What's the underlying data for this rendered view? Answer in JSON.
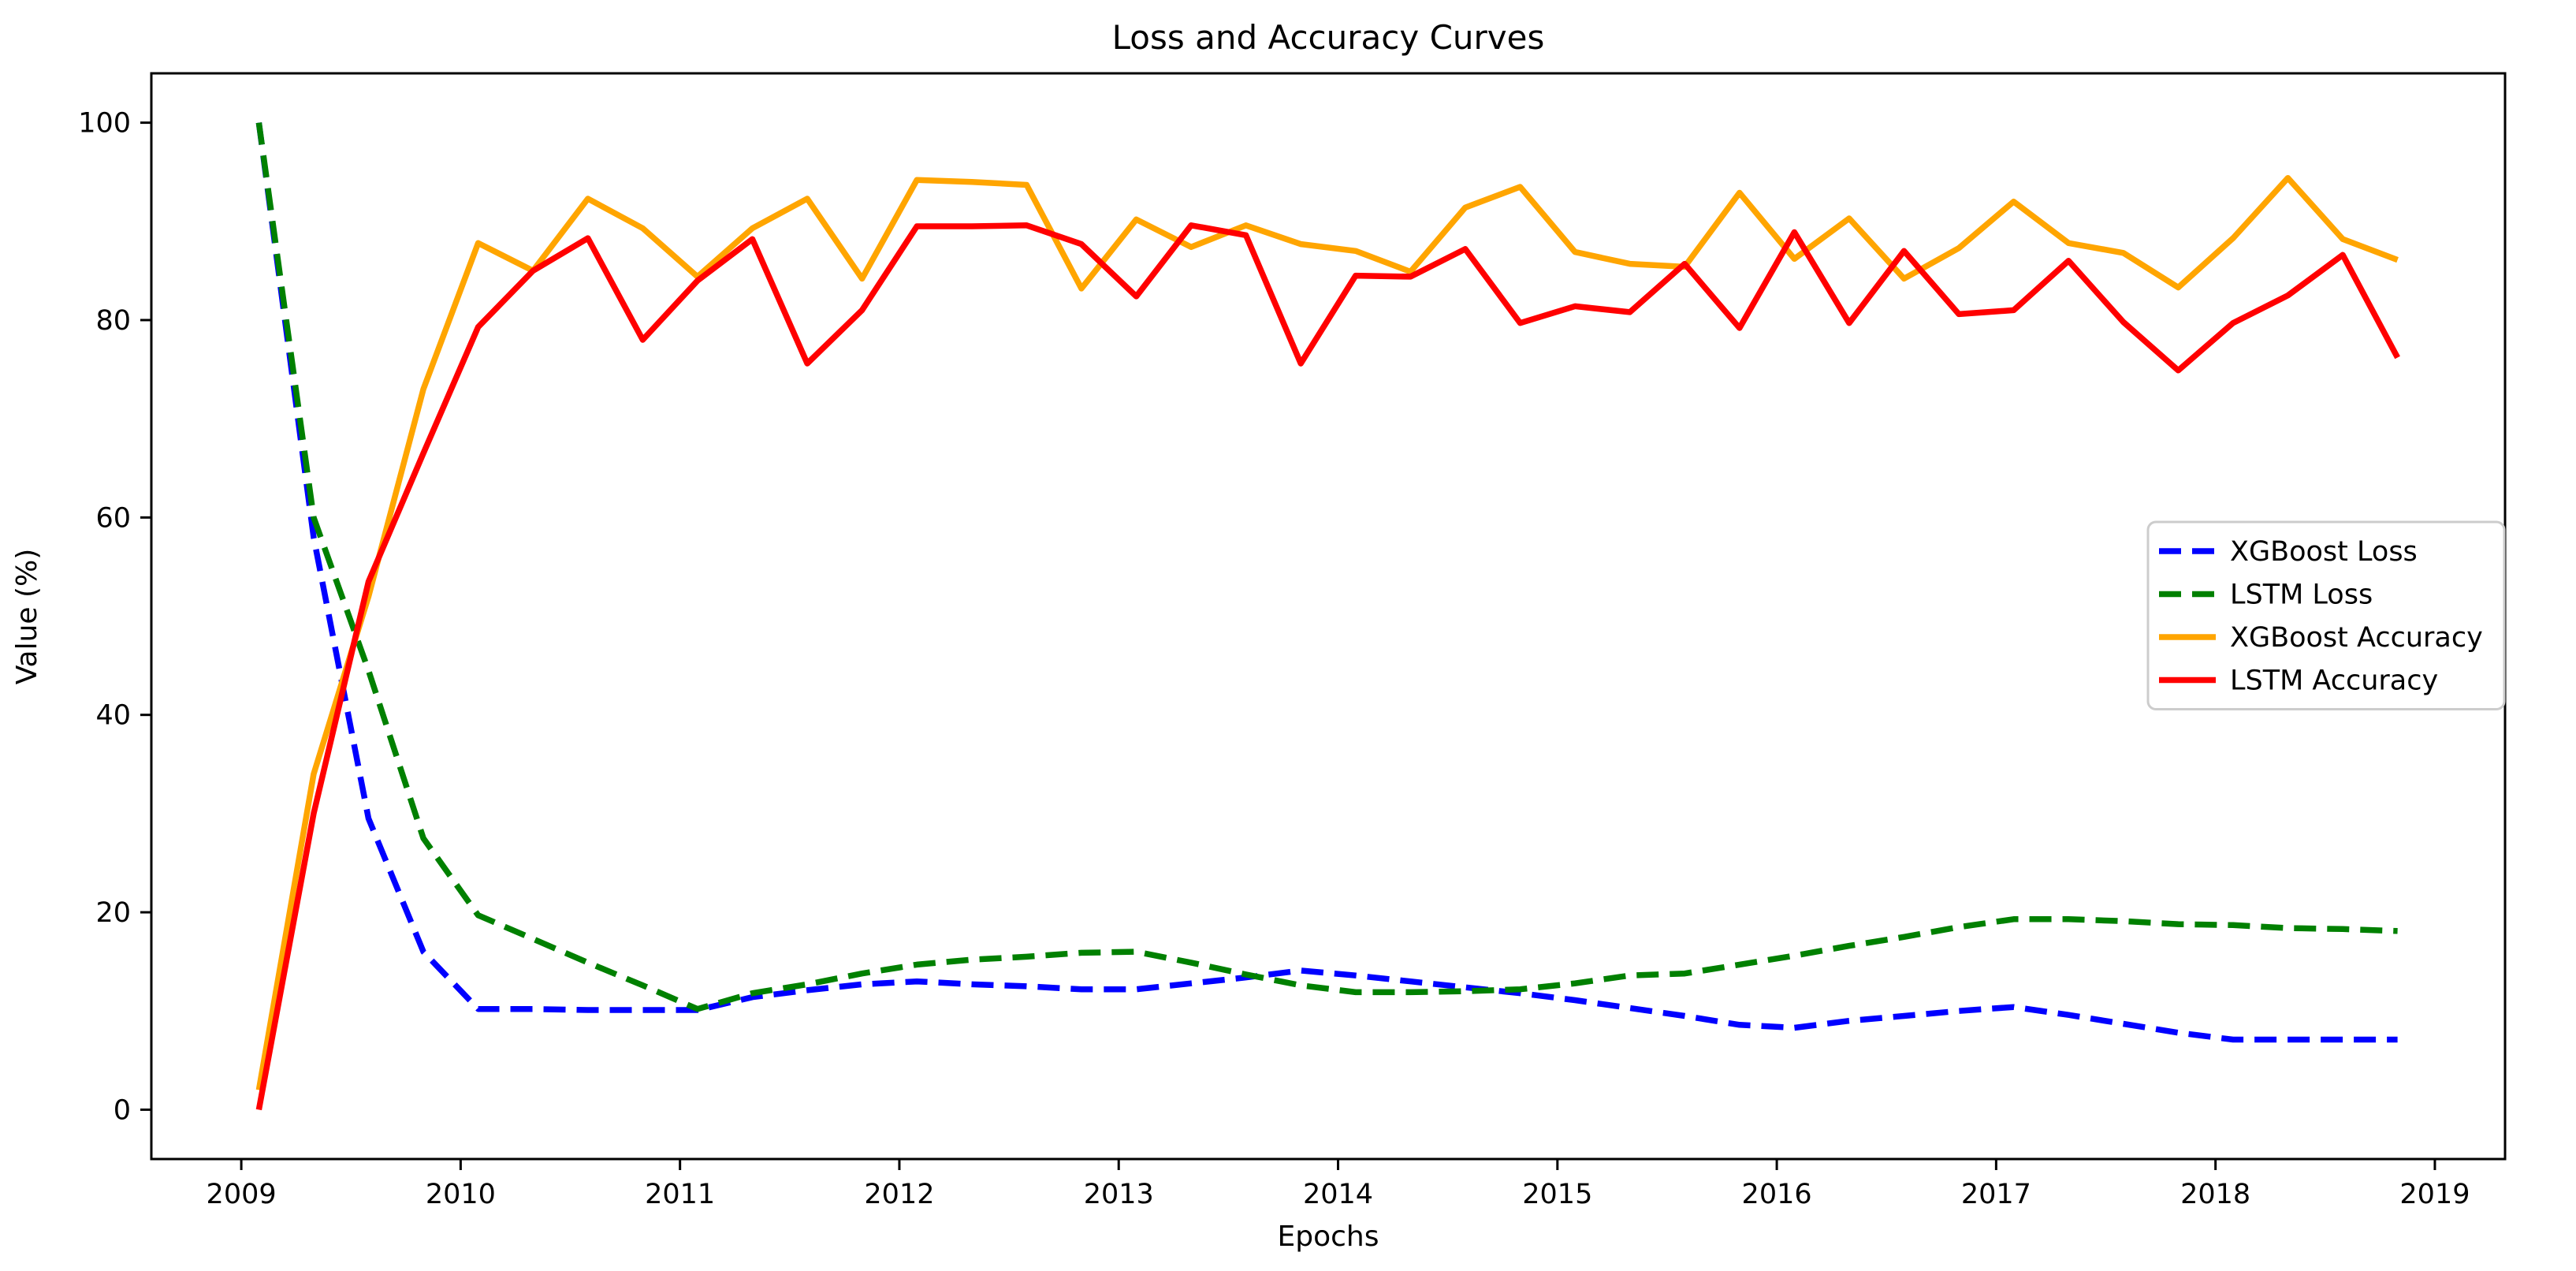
{
  "figure": {
    "title": "Loss and Accuracy Curves",
    "xlabel": "Epochs",
    "ylabel": "Value (%)",
    "background_color": "#ffffff",
    "axis_color": "#000000",
    "legend_border_color": "#cccccc"
  },
  "chart_data": {
    "type": "line",
    "title": "Loss and Accuracy Curves",
    "xlabel": "Epochs",
    "ylabel": "Value (%)",
    "grid": false,
    "legend_position": "center right",
    "xlim": [
      2008.59,
      2019.32
    ],
    "ylim": [
      -5,
      105
    ],
    "x_ticks": [
      2009,
      2010,
      2011,
      2012,
      2013,
      2014,
      2015,
      2016,
      2017,
      2018,
      2019
    ],
    "y_ticks": [
      0,
      20,
      40,
      60,
      80,
      100
    ],
    "x": [
      2009.08,
      2009.33,
      2009.58,
      2009.83,
      2010.08,
      2010.33,
      2010.58,
      2010.83,
      2011.08,
      2011.33,
      2011.58,
      2011.83,
      2012.08,
      2012.33,
      2012.58,
      2012.83,
      2013.08,
      2013.33,
      2013.58,
      2013.83,
      2014.08,
      2014.33,
      2014.58,
      2014.83,
      2015.08,
      2015.33,
      2015.58,
      2015.83,
      2016.08,
      2016.33,
      2016.58,
      2016.83,
      2017.08,
      2017.33,
      2017.58,
      2017.83,
      2018.08,
      2018.33,
      2018.58,
      2018.83
    ],
    "series": [
      {
        "name": "XGBoost Loss",
        "color": "#0000ff",
        "style": "dashed",
        "values": [
          100,
          58,
          29.5,
          16,
          10.2,
          10.2,
          10.1,
          10.1,
          10.1,
          11.4,
          12.1,
          12.7,
          13,
          12.7,
          12.5,
          12.2,
          12.2,
          12.8,
          13.4,
          14.1,
          13.6,
          13,
          12.4,
          11.8,
          11.1,
          10.3,
          9.5,
          8.6,
          8.3,
          9,
          9.5,
          10,
          10.4,
          9.6,
          8.7,
          7.8,
          7.1,
          7.1,
          7.1,
          7.1
        ]
      },
      {
        "name": "LSTM Loss",
        "color": "#008000",
        "style": "dashed",
        "values": [
          100,
          60,
          44.5,
          27.5,
          19.7,
          17.3,
          14.9,
          12.6,
          10.2,
          11.8,
          12.7,
          13.8,
          14.7,
          15.2,
          15.5,
          15.9,
          16,
          14.9,
          13.7,
          12.6,
          11.9,
          11.9,
          12,
          12.2,
          12.8,
          13.6,
          13.8,
          14.7,
          15.6,
          16.6,
          17.5,
          18.5,
          19.3,
          19.3,
          19.1,
          18.8,
          18.7,
          18.4,
          18.3,
          18.1
        ]
      },
      {
        "name": "XGBoost Accuracy",
        "color": "#ffa500",
        "style": "solid",
        "values": [
          2,
          34,
          52,
          73,
          87.8,
          85,
          92.3,
          89.3,
          84.4,
          89.3,
          92.3,
          84.2,
          94.2,
          94,
          93.7,
          83.2,
          90.2,
          87.4,
          89.6,
          87.7,
          87,
          84.9,
          91.4,
          93.5,
          86.9,
          85.7,
          85.4,
          92.9,
          86.2,
          90.3,
          84.2,
          87.3,
          92,
          87.8,
          86.8,
          83.3,
          88.3,
          94.4,
          88.2,
          86.1
        ]
      },
      {
        "name": "LSTM Accuracy",
        "color": "#ff0000",
        "style": "solid",
        "values": [
          0,
          30,
          53.5,
          66.5,
          79.3,
          85,
          88.3,
          78,
          84,
          88.2,
          75.6,
          81,
          89.5,
          89.5,
          89.6,
          87.7,
          82.4,
          89.6,
          88.6,
          75.6,
          84.5,
          84.4,
          87.2,
          79.7,
          81.4,
          80.8,
          85.7,
          79.2,
          88.9,
          79.7,
          87,
          80.6,
          81,
          86,
          79.8,
          74.9,
          79.7,
          82.5,
          86.6,
          76.2
        ]
      }
    ]
  }
}
